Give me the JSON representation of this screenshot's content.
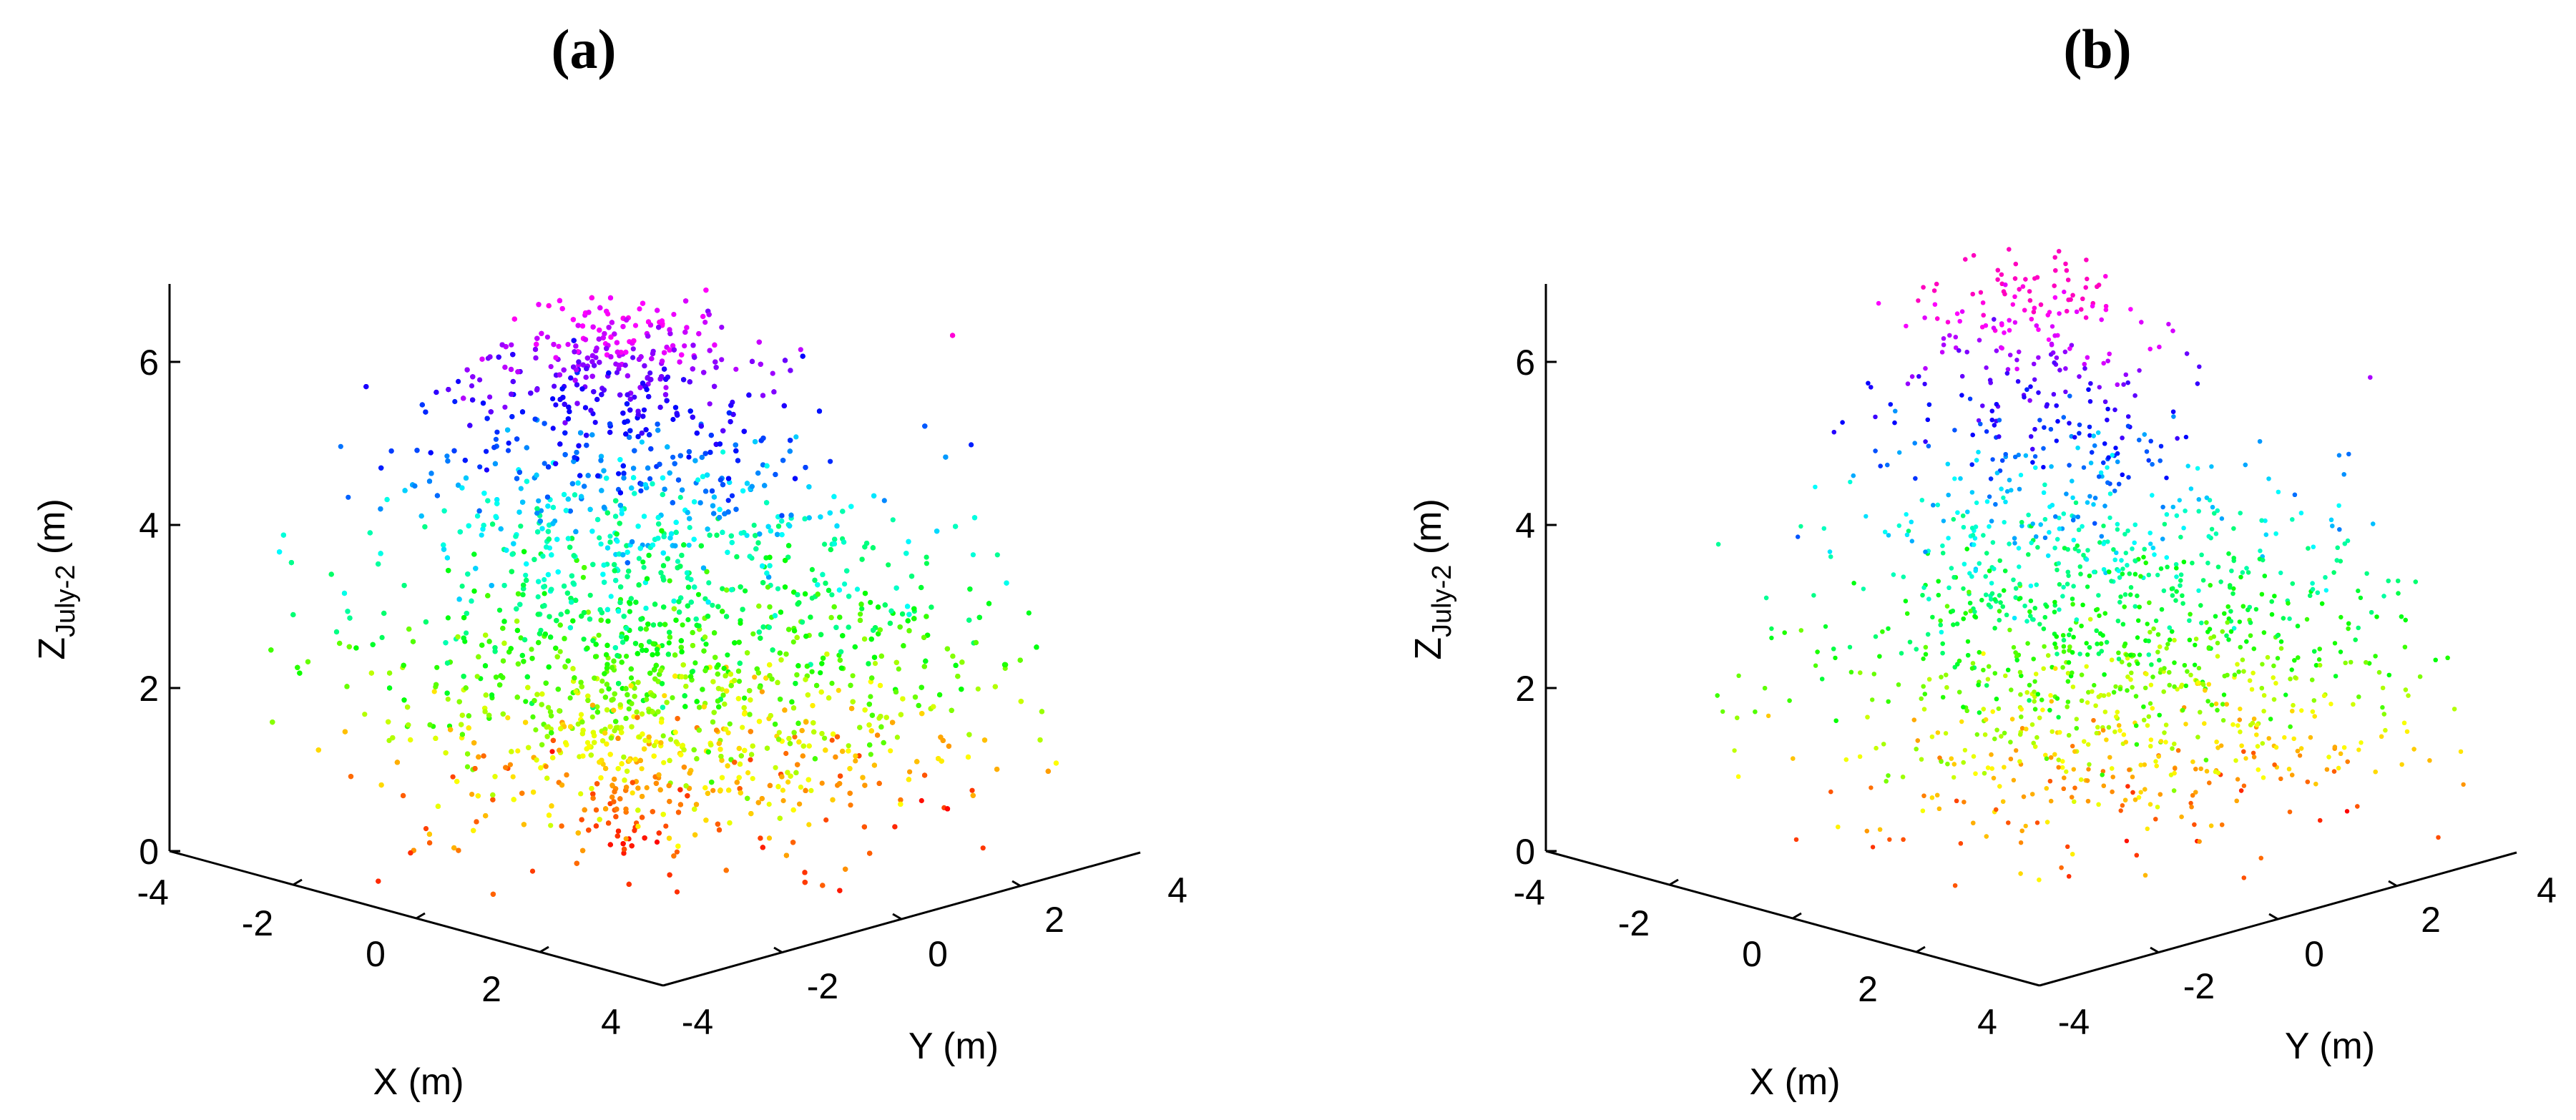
{
  "chart_data": [
    {
      "type": "scatter",
      "panel_label": "(a)",
      "subtype": "3d-point-cloud",
      "x_axis": {
        "label": "X (m)",
        "range": [
          -4,
          4
        ],
        "ticks": [
          "-4",
          "-2",
          "0",
          "2",
          "4"
        ]
      },
      "y_axis": {
        "label": "Y (m)",
        "range": [
          -4,
          4
        ],
        "ticks": [
          "-4",
          "-2",
          "0",
          "2",
          "4"
        ]
      },
      "z_axis": {
        "label_main": "Z",
        "label_sub": "July-2",
        "label_unit": " (m)",
        "range": [
          0,
          7
        ],
        "ticks": [
          "0",
          "2",
          "4",
          "6"
        ]
      },
      "colormap": "height (hsv: red at z=0 → violet/magenta at top)",
      "density": "dense",
      "grid": false,
      "legend": false
    },
    {
      "type": "scatter",
      "panel_label": "(b)",
      "subtype": "3d-point-cloud",
      "x_axis": {
        "label": "X (m)",
        "range": [
          -4,
          4
        ],
        "ticks": [
          "-4",
          "-2",
          "0",
          "2",
          "4"
        ]
      },
      "y_axis": {
        "label": "Y (m)",
        "range": [
          -4,
          4
        ],
        "ticks": [
          "-4",
          "-2",
          "0",
          "2",
          "4"
        ]
      },
      "z_axis": {
        "label_main": "Z",
        "label_sub": "July-2",
        "label_unit": " (m)",
        "range": [
          0,
          7
        ],
        "ticks": [
          "0",
          "2",
          "4",
          "6"
        ]
      },
      "colormap": "height (hsv: red at z=0 → violet/magenta at top)",
      "density": "sparse",
      "grid": false,
      "legend": false
    }
  ]
}
